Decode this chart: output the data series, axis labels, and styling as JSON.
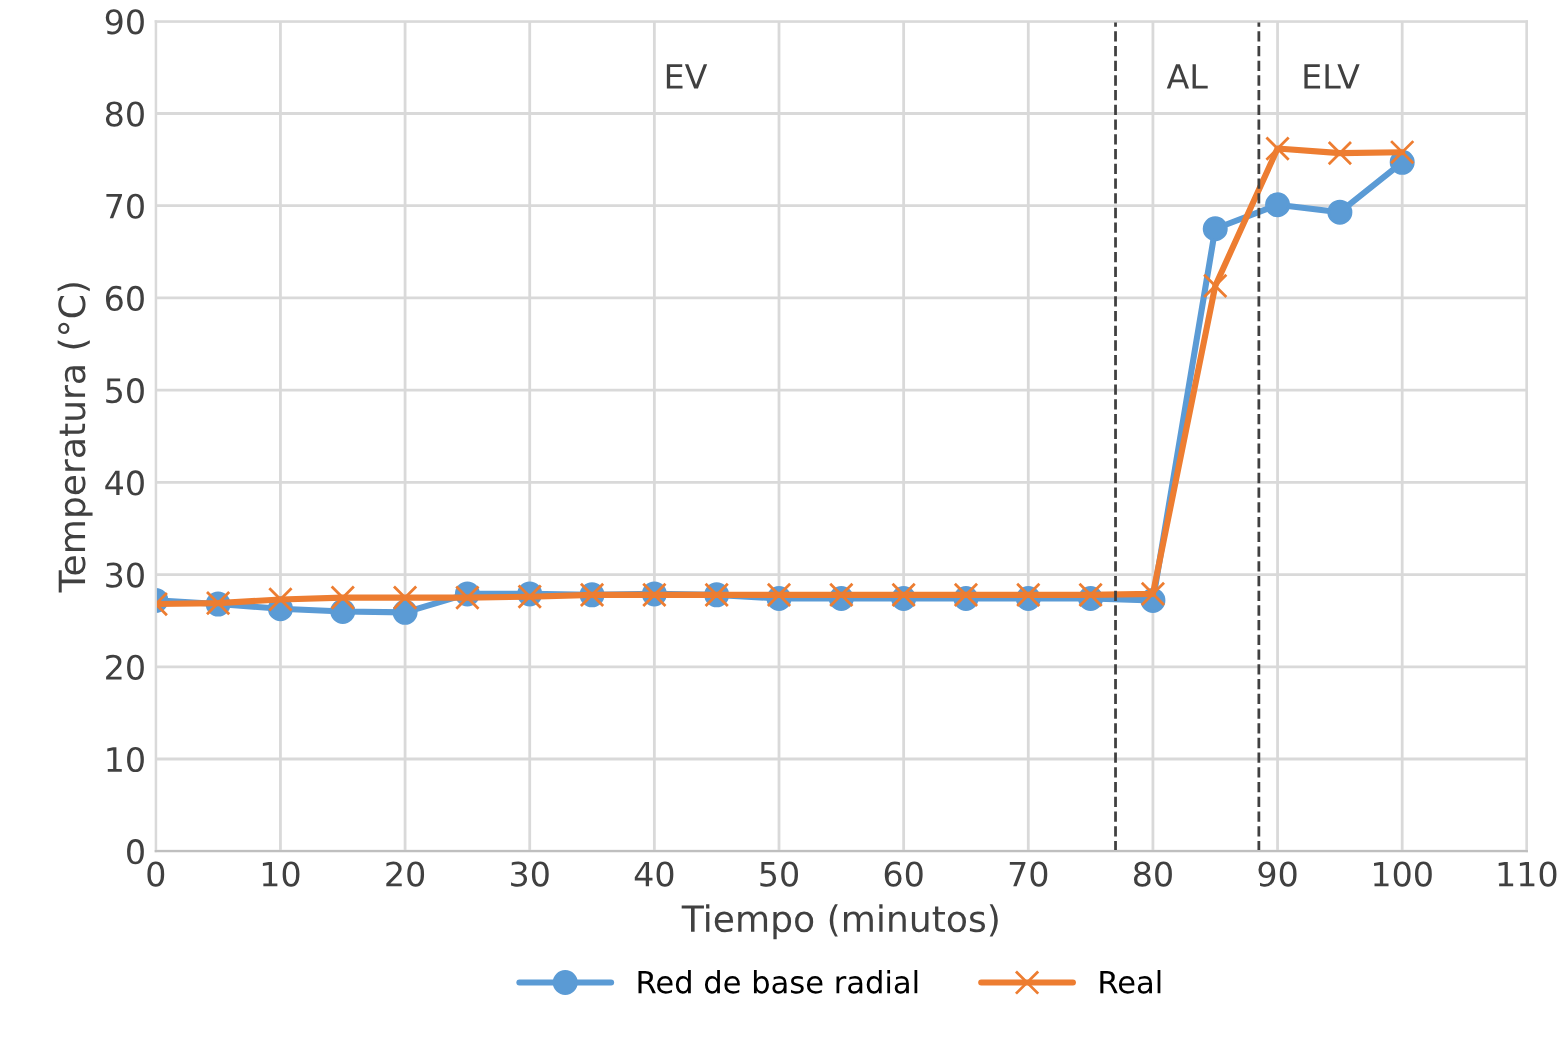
{
  "chart_data": {
    "type": "line",
    "xlabel": "Tiempo (minutos)",
    "ylabel": "Temperatura (°C)",
    "x": [
      0,
      5,
      10,
      15,
      20,
      25,
      30,
      35,
      40,
      45,
      50,
      55,
      60,
      65,
      70,
      75,
      80,
      85,
      90,
      95,
      100
    ],
    "series": [
      {
        "name": "Red de base radial",
        "color": "#5b9bd5",
        "marker": "circle",
        "values": [
          27.2,
          26.8,
          26.3,
          26.0,
          25.9,
          27.9,
          27.9,
          27.8,
          27.9,
          27.8,
          27.4,
          27.4,
          27.4,
          27.4,
          27.4,
          27.4,
          27.2,
          67.5,
          70.1,
          69.3,
          74.7
        ]
      },
      {
        "name": "Real",
        "color": "#ed7d31",
        "marker": "cross",
        "values": [
          26.8,
          26.9,
          27.3,
          27.5,
          27.5,
          27.5,
          27.6,
          27.8,
          27.8,
          27.8,
          27.8,
          27.8,
          27.8,
          27.8,
          27.8,
          27.8,
          27.9,
          61.3,
          76.2,
          75.7,
          75.8
        ]
      }
    ],
    "xlim": [
      0,
      110
    ],
    "xticks": [
      0,
      10,
      20,
      30,
      40,
      50,
      60,
      70,
      80,
      90,
      100,
      110
    ],
    "ylim": [
      0,
      90
    ],
    "yticks": [
      0,
      10,
      20,
      30,
      40,
      50,
      60,
      70,
      80,
      90
    ],
    "ref_lines": [
      {
        "axis": "x",
        "value": 77,
        "color": "#404040",
        "line_style": "dashed"
      },
      {
        "axis": "x",
        "value": 88.5,
        "color": "#404040",
        "line_style": "dashed"
      }
    ],
    "annotations": [
      "EV",
      "AL",
      "ELV"
    ],
    "grid": true,
    "legend": "bottom",
    "line_style": "solid"
  }
}
